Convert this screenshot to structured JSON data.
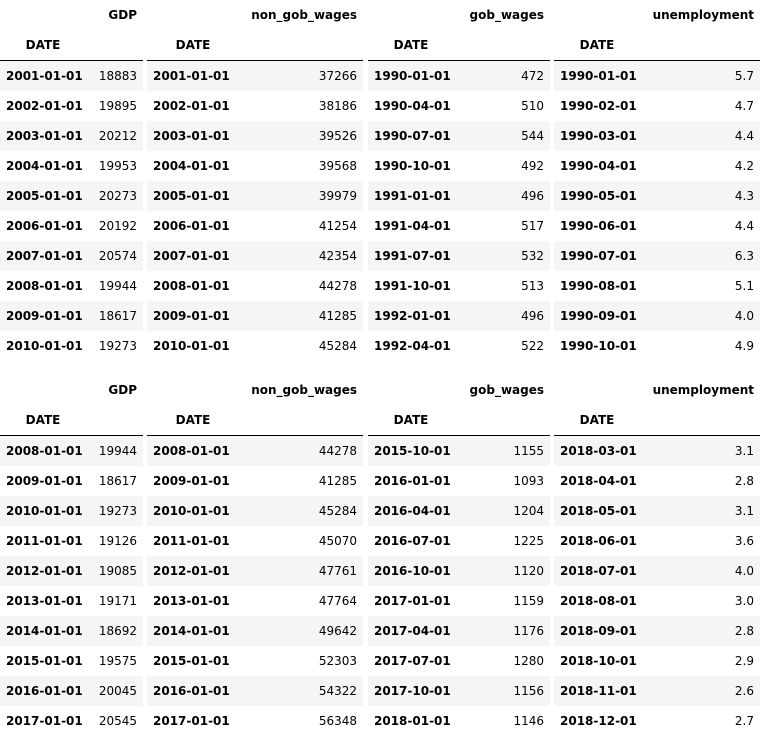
{
  "index_label": "DATE",
  "blocks": [
    {
      "tables": [
        {
          "column": "GDP",
          "rows": [
            [
              "2001-01-01",
              "18883"
            ],
            [
              "2002-01-01",
              "19895"
            ],
            [
              "2003-01-01",
              "20212"
            ],
            [
              "2004-01-01",
              "19953"
            ],
            [
              "2005-01-01",
              "20273"
            ],
            [
              "2006-01-01",
              "20192"
            ],
            [
              "2007-01-01",
              "20574"
            ],
            [
              "2008-01-01",
              "19944"
            ],
            [
              "2009-01-01",
              "18617"
            ],
            [
              "2010-01-01",
              "19273"
            ]
          ]
        },
        {
          "column": "non_gob_wages",
          "rows": [
            [
              "2001-01-01",
              "37266"
            ],
            [
              "2002-01-01",
              "38186"
            ],
            [
              "2003-01-01",
              "39526"
            ],
            [
              "2004-01-01",
              "39568"
            ],
            [
              "2005-01-01",
              "39979"
            ],
            [
              "2006-01-01",
              "41254"
            ],
            [
              "2007-01-01",
              "42354"
            ],
            [
              "2008-01-01",
              "44278"
            ],
            [
              "2009-01-01",
              "41285"
            ],
            [
              "2010-01-01",
              "45284"
            ]
          ]
        },
        {
          "column": "gob_wages",
          "rows": [
            [
              "1990-01-01",
              "472"
            ],
            [
              "1990-04-01",
              "510"
            ],
            [
              "1990-07-01",
              "544"
            ],
            [
              "1990-10-01",
              "492"
            ],
            [
              "1991-01-01",
              "496"
            ],
            [
              "1991-04-01",
              "517"
            ],
            [
              "1991-07-01",
              "532"
            ],
            [
              "1991-10-01",
              "513"
            ],
            [
              "1992-01-01",
              "496"
            ],
            [
              "1992-04-01",
              "522"
            ]
          ]
        },
        {
          "column": "unemployment",
          "rows": [
            [
              "1990-01-01",
              "5.7"
            ],
            [
              "1990-02-01",
              "4.7"
            ],
            [
              "1990-03-01",
              "4.4"
            ],
            [
              "1990-04-01",
              "4.2"
            ],
            [
              "1990-05-01",
              "4.3"
            ],
            [
              "1990-06-01",
              "4.4"
            ],
            [
              "1990-07-01",
              "6.3"
            ],
            [
              "1990-08-01",
              "5.1"
            ],
            [
              "1990-09-01",
              "4.0"
            ],
            [
              "1990-10-01",
              "4.9"
            ]
          ]
        }
      ]
    },
    {
      "tables": [
        {
          "column": "GDP",
          "rows": [
            [
              "2008-01-01",
              "19944"
            ],
            [
              "2009-01-01",
              "18617"
            ],
            [
              "2010-01-01",
              "19273"
            ],
            [
              "2011-01-01",
              "19126"
            ],
            [
              "2012-01-01",
              "19085"
            ],
            [
              "2013-01-01",
              "19171"
            ],
            [
              "2014-01-01",
              "18692"
            ],
            [
              "2015-01-01",
              "19575"
            ],
            [
              "2016-01-01",
              "20045"
            ],
            [
              "2017-01-01",
              "20545"
            ]
          ]
        },
        {
          "column": "non_gob_wages",
          "rows": [
            [
              "2008-01-01",
              "44278"
            ],
            [
              "2009-01-01",
              "41285"
            ],
            [
              "2010-01-01",
              "45284"
            ],
            [
              "2011-01-01",
              "45070"
            ],
            [
              "2012-01-01",
              "47761"
            ],
            [
              "2013-01-01",
              "47764"
            ],
            [
              "2014-01-01",
              "49642"
            ],
            [
              "2015-01-01",
              "52303"
            ],
            [
              "2016-01-01",
              "54322"
            ],
            [
              "2017-01-01",
              "56348"
            ]
          ]
        },
        {
          "column": "gob_wages",
          "rows": [
            [
              "2015-10-01",
              "1155"
            ],
            [
              "2016-01-01",
              "1093"
            ],
            [
              "2016-04-01",
              "1204"
            ],
            [
              "2016-07-01",
              "1225"
            ],
            [
              "2016-10-01",
              "1120"
            ],
            [
              "2017-01-01",
              "1159"
            ],
            [
              "2017-04-01",
              "1176"
            ],
            [
              "2017-07-01",
              "1280"
            ],
            [
              "2017-10-01",
              "1156"
            ],
            [
              "2018-01-01",
              "1146"
            ]
          ]
        },
        {
          "column": "unemployment",
          "rows": [
            [
              "2018-03-01",
              "3.1"
            ],
            [
              "2018-04-01",
              "2.8"
            ],
            [
              "2018-05-01",
              "3.1"
            ],
            [
              "2018-06-01",
              "3.6"
            ],
            [
              "2018-07-01",
              "4.0"
            ],
            [
              "2018-08-01",
              "3.0"
            ],
            [
              "2018-09-01",
              "2.8"
            ],
            [
              "2018-10-01",
              "2.9"
            ],
            [
              "2018-11-01",
              "2.6"
            ],
            [
              "2018-12-01",
              "2.7"
            ]
          ]
        }
      ]
    }
  ]
}
